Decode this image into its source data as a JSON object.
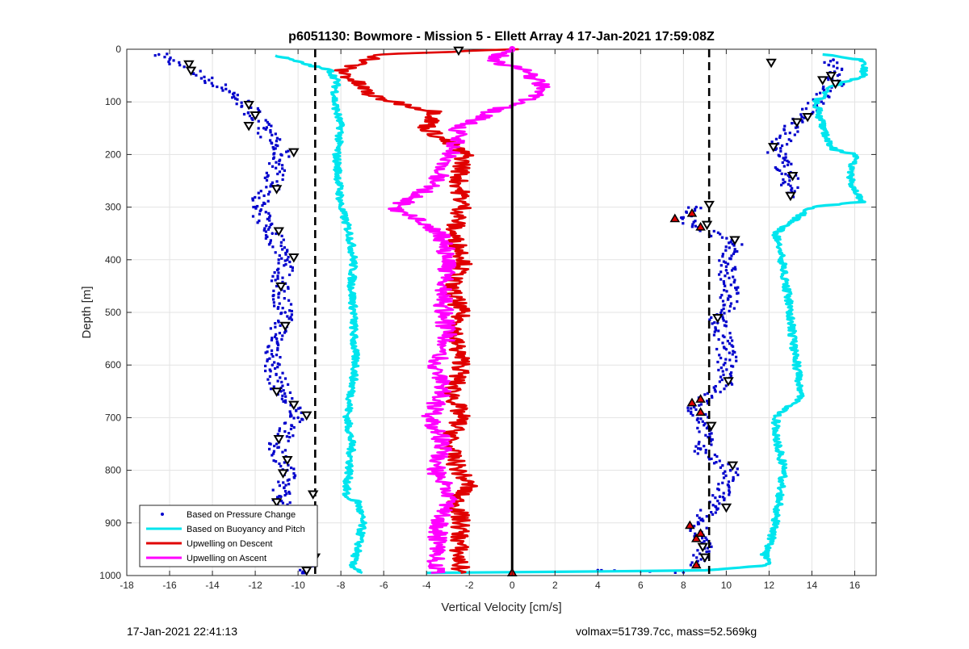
{
  "footer": {
    "left": "17-Jan-2021 22:41:13",
    "right": "volmax=51739.7cc, mass=52.569kg"
  },
  "chart_data": {
    "type": "scatter",
    "title": "p6051130: Bowmore - Mission 5 - Ellett Array 4 17-Jan-2021 17:59:08Z",
    "xlabel": "Vertical Velocity [cm/s]",
    "ylabel": "Depth [m]",
    "xlim": [
      -18,
      17
    ],
    "ylim": [
      0,
      1000
    ],
    "y_reversed": true,
    "x_ticks": [
      -18,
      -16,
      -14,
      -12,
      -10,
      -8,
      -6,
      -4,
      -2,
      0,
      2,
      4,
      6,
      8,
      10,
      12,
      14,
      16
    ],
    "y_ticks": [
      0,
      100,
      200,
      300,
      400,
      500,
      600,
      700,
      800,
      900,
      1000
    ],
    "grid": true,
    "legend_position": "bottom-left",
    "colors": {
      "pressure": "#0000cc",
      "buoyancy": "#00e5ee",
      "descent": "#e00000",
      "ascent": "#ff00ff",
      "reference": "#000000"
    },
    "reference_lines": [
      {
        "x": -9.2,
        "style": "dashed"
      },
      {
        "x": 9.2,
        "style": "dashed"
      },
      {
        "x": 0,
        "style": "solid"
      }
    ],
    "series": [
      {
        "name": "Based on Pressure Change",
        "style": "points",
        "branches": [
          {
            "depth": [
              10,
              40,
              80,
              110,
              150,
              200,
              260,
              300,
              350,
              400,
              450,
              500,
              550,
              600,
              650,
              700,
              750,
              800,
              850,
              900,
              950,
              995
            ],
            "x": [
              -16.5,
              -15.0,
              -13.2,
              -12.3,
              -11.6,
              -10.8,
              -11.2,
              -12.0,
              -11.2,
              -10.5,
              -10.9,
              -10.6,
              -11.0,
              -11.2,
              -10.8,
              -10.0,
              -11.0,
              -10.5,
              -10.8,
              -10.2,
              -9.6,
              -9.8
            ]
          },
          {
            "depth": [
              20,
              60,
              100,
              140,
              190,
              240,
              280
            ],
            "x": [
              15.0,
              15.2,
              14.3,
              13.2,
              12.3,
              12.9,
              13.1
            ]
          },
          {
            "depth": [
              300,
              320,
              340,
              370,
              420,
              470,
              520,
              570,
              630,
              680,
              720,
              760,
              800,
              850,
              900,
              940,
              980
            ],
            "x": [
              8.6,
              7.9,
              8.8,
              10.3,
              10.0,
              10.2,
              9.6,
              10.0,
              10.1,
              8.5,
              9.1,
              8.8,
              10.2,
              9.7,
              8.7,
              8.9,
              8.7
            ]
          },
          {
            "depth": [
              990,
              992,
              994
            ],
            "x": [
              4.0,
              6.0,
              8.0
            ]
          }
        ]
      },
      {
        "name": "Based on Buoyancy and Pitch",
        "style": "line",
        "branches": [
          {
            "depth": [
              12,
              30,
              40,
              60,
              100,
              150,
              200,
              250,
              300,
              350,
              400,
              450,
              500,
              550,
              600,
              650,
              700,
              750,
              800,
              850,
              860,
              900,
              950,
              980,
              995
            ],
            "x": [
              -11.0,
              -9.5,
              -8.5,
              -8.2,
              -8.3,
              -8.0,
              -8.2,
              -8.1,
              -8.0,
              -7.6,
              -7.4,
              -7.5,
              -7.4,
              -7.4,
              -7.3,
              -7.5,
              -7.7,
              -7.5,
              -7.6,
              -7.8,
              -7.2,
              -7.0,
              -7.2,
              -7.5,
              -7.0
            ]
          },
          {
            "depth": [
              995,
              993,
              990,
              980,
              960,
              930,
              900,
              850,
              800,
              750,
              700,
              660,
              600,
              550,
              500,
              450,
              400,
              350,
              300,
              290,
              250,
              200,
              190,
              150,
              100,
              70,
              50,
              20,
              10
            ],
            "x": [
              -4.0,
              2.0,
              9.0,
              12.0,
              11.8,
              12.1,
              12.3,
              12.5,
              12.7,
              12.4,
              12.3,
              13.5,
              13.3,
              13.1,
              13.0,
              12.8,
              12.6,
              12.3,
              14.0,
              16.3,
              15.8,
              16.0,
              15.0,
              14.5,
              14.2,
              15.0,
              16.5,
              16.3,
              14.5
            ]
          }
        ]
      },
      {
        "name": "Upwelling on Descent",
        "style": "line",
        "branches": [
          {
            "depth": [
              0,
              10,
              40,
              90,
              120,
              150,
              200,
              250,
              300,
              350,
              400,
              450,
              500,
              550,
              600,
              650,
              700,
              750,
              800,
              830,
              850,
              900,
              960,
              995
            ],
            "x": [
              0.0,
              -6.0,
              -8.0,
              -6.5,
              -3.5,
              -4.0,
              -2.2,
              -2.5,
              -2.3,
              -2.8,
              -2.2,
              -2.9,
              -2.4,
              -2.7,
              -2.3,
              -2.8,
              -2.4,
              -3.0,
              -2.5,
              -2.0,
              -2.6,
              -2.4,
              -2.5,
              -2.4
            ]
          }
        ]
      },
      {
        "name": "Upwelling on Ascent",
        "style": "line",
        "branches": [
          {
            "depth": [
              995,
              960,
              900,
              850,
              800,
              750,
              700,
              650,
              600,
              550,
              500,
              450,
              400,
              350,
              300,
              280,
              250,
              200,
              150,
              120,
              90,
              70,
              40,
              20,
              0
            ],
            "x": [
              -3.5,
              -3.6,
              -3.4,
              -2.8,
              -3.6,
              -3.2,
              -3.8,
              -3.3,
              -3.5,
              -3.0,
              -3.2,
              -3.3,
              -3.0,
              -3.3,
              -5.5,
              -4.5,
              -3.5,
              -2.8,
              -2.5,
              -1.0,
              1.0,
              1.5,
              0.5,
              -1.0,
              0.0
            ]
          }
        ]
      }
    ],
    "markers": {
      "triangles_open": [
        {
          "x": -15.1,
          "depth": 28
        },
        {
          "x": -15.0,
          "depth": 40
        },
        {
          "x": -12.3,
          "depth": 105
        },
        {
          "x": -12.0,
          "depth": 125
        },
        {
          "x": -12.3,
          "depth": 145
        },
        {
          "x": -10.2,
          "depth": 195
        },
        {
          "x": -11.0,
          "depth": 265
        },
        {
          "x": -10.9,
          "depth": 345
        },
        {
          "x": -10.2,
          "depth": 395
        },
        {
          "x": -10.8,
          "depth": 450
        },
        {
          "x": -10.6,
          "depth": 525
        },
        {
          "x": -11.0,
          "depth": 650
        },
        {
          "x": -10.2,
          "depth": 675
        },
        {
          "x": -9.6,
          "depth": 695
        },
        {
          "x": -10.9,
          "depth": 740
        },
        {
          "x": -10.5,
          "depth": 780
        },
        {
          "x": -10.7,
          "depth": 805
        },
        {
          "x": -9.3,
          "depth": 845
        },
        {
          "x": -11.0,
          "depth": 860
        },
        {
          "x": -9.8,
          "depth": 930
        },
        {
          "x": -9.2,
          "depth": 965
        },
        {
          "x": -9.6,
          "depth": 990
        },
        {
          "x": -2.5,
          "depth": 2
        },
        {
          "x": 12.1,
          "depth": 25
        },
        {
          "x": 14.5,
          "depth": 58
        },
        {
          "x": 14.9,
          "depth": 50
        },
        {
          "x": 15.1,
          "depth": 65
        },
        {
          "x": 13.8,
          "depth": 128
        },
        {
          "x": 13.3,
          "depth": 138
        },
        {
          "x": 12.2,
          "depth": 185
        },
        {
          "x": 13.1,
          "depth": 240
        },
        {
          "x": 13.0,
          "depth": 278
        },
        {
          "x": 9.2,
          "depth": 295
        },
        {
          "x": 9.1,
          "depth": 333
        },
        {
          "x": 10.4,
          "depth": 362
        },
        {
          "x": 9.6,
          "depth": 510
        },
        {
          "x": 10.1,
          "depth": 630
        },
        {
          "x": 9.3,
          "depth": 715
        },
        {
          "x": 10.3,
          "depth": 790
        },
        {
          "x": 10.0,
          "depth": 870
        },
        {
          "x": 8.9,
          "depth": 945
        },
        {
          "x": 9.0,
          "depth": 965
        }
      ],
      "triangles_red": [
        {
          "x": 7.6,
          "depth": 322
        },
        {
          "x": 8.4,
          "depth": 312
        },
        {
          "x": 8.8,
          "depth": 338
        },
        {
          "x": 8.4,
          "depth": 672
        },
        {
          "x": 8.8,
          "depth": 665
        },
        {
          "x": 8.8,
          "depth": 690
        },
        {
          "x": 8.3,
          "depth": 905
        },
        {
          "x": 8.6,
          "depth": 930
        },
        {
          "x": 8.8,
          "depth": 920
        },
        {
          "x": 8.6,
          "depth": 980
        },
        {
          "x": 0.0,
          "depth": 995
        }
      ]
    }
  }
}
